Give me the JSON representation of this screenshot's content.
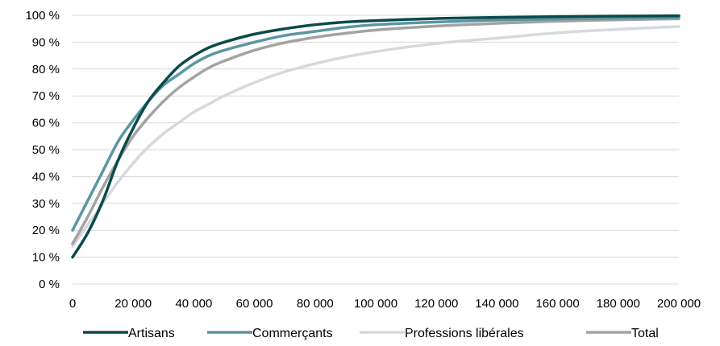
{
  "chart_data": {
    "type": "line",
    "title": "",
    "xlabel": "",
    "ylabel": "",
    "xlim": [
      0,
      200000
    ],
    "ylim": [
      0,
      100
    ],
    "x_ticks": [
      0,
      20000,
      40000,
      60000,
      80000,
      100000,
      120000,
      140000,
      160000,
      180000,
      200000
    ],
    "x_tick_labels": [
      "0",
      "20 000",
      "40 000",
      "60 000",
      "80 000",
      "100 000",
      "120 000",
      "140 000",
      "160 000",
      "180 000",
      "200 000"
    ],
    "y_ticks": [
      0,
      10,
      20,
      30,
      40,
      50,
      60,
      70,
      80,
      90,
      100
    ],
    "y_tick_labels": [
      "0 %",
      "10 %",
      "20 %",
      "30 %",
      "40 %",
      "50 %",
      "60 %",
      "70 %",
      "80 %",
      "90 %",
      "100 %"
    ],
    "grid": true,
    "legend_position": "bottom",
    "x": [
      0,
      5000,
      10000,
      15000,
      20000,
      25000,
      30000,
      35000,
      40000,
      45000,
      50000,
      60000,
      70000,
      80000,
      90000,
      100000,
      120000,
      140000,
      160000,
      180000,
      200000
    ],
    "series": [
      {
        "name": "Artisans",
        "color": "#0b4a4a",
        "values": [
          10,
          19,
          31,
          46,
          58,
          68,
          75,
          81,
          85,
          88,
          90,
          93,
          95,
          96.5,
          97.5,
          98,
          98.8,
          99.2,
          99.5,
          99.7,
          99.8
        ]
      },
      {
        "name": "Commerçants",
        "color": "#5b95a3",
        "values": [
          20,
          31,
          42,
          53,
          61,
          68,
          74,
          78,
          82,
          85,
          87,
          90,
          92.5,
          94,
          95.5,
          96.5,
          97.5,
          98.2,
          98.6,
          98.9,
          99.1
        ]
      },
      {
        "name": "Professions libérales",
        "color": "#d4dadd",
        "values": [
          14,
          22,
          30,
          38,
          45,
          51,
          56,
          60,
          64,
          67,
          70,
          75,
          79,
          82,
          84.5,
          86.5,
          89.5,
          91.5,
          93.5,
          94.8,
          95.8
        ]
      },
      {
        "name": "Total",
        "color": "#a3a3a3",
        "values": [
          15,
          25,
          36,
          46,
          55,
          62,
          68,
          73,
          77,
          80.5,
          83,
          87,
          89.8,
          91.8,
          93.3,
          94.5,
          96,
          97,
          97.8,
          98.3,
          98.7
        ]
      }
    ]
  }
}
